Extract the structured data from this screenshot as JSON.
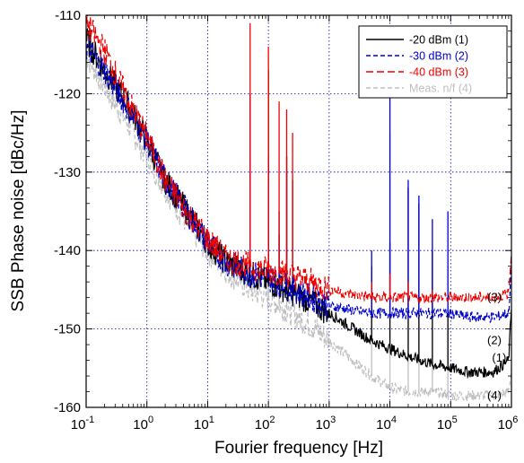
{
  "chart_data": {
    "type": "line",
    "title": "",
    "xlabel": "Fourier frequency [Hz]",
    "ylabel": "SSB Phase noise [dBc/Hz]",
    "xscale": "log",
    "xlim": [
      0.1,
      1000000
    ],
    "ylim": [
      -160,
      -110
    ],
    "x_ticks": [
      {
        "value": 0.1,
        "base": "10",
        "exp": "-1"
      },
      {
        "value": 1,
        "base": "10",
        "exp": "0"
      },
      {
        "value": 10,
        "base": "10",
        "exp": "1"
      },
      {
        "value": 100,
        "base": "10",
        "exp": "2"
      },
      {
        "value": 1000,
        "base": "10",
        "exp": "3"
      },
      {
        "value": 10000,
        "base": "10",
        "exp": "4"
      },
      {
        "value": 100000,
        "base": "10",
        "exp": "5"
      },
      {
        "value": 1000000,
        "base": "10",
        "exp": "6"
      }
    ],
    "y_ticks": [
      {
        "value": -110,
        "label": "-110"
      },
      {
        "value": -120,
        "label": "-120"
      },
      {
        "value": -130,
        "label": "-130"
      },
      {
        "value": -140,
        "label": "-140"
      },
      {
        "value": -150,
        "label": "-150"
      },
      {
        "value": -160,
        "label": "-160"
      }
    ],
    "grid": true,
    "legend_position": "top-right",
    "series": [
      {
        "name": "-20 dBm (1)",
        "color": "#000000",
        "dash": "solid",
        "points": [
          [
            0.1,
            -113
          ],
          [
            0.2,
            -117
          ],
          [
            0.5,
            -121.5
          ],
          [
            1,
            -126
          ],
          [
            2,
            -131
          ],
          [
            5,
            -135.5
          ],
          [
            10,
            -139
          ],
          [
            20,
            -141.5
          ],
          [
            50,
            -143
          ],
          [
            100,
            -144
          ],
          [
            200,
            -145
          ],
          [
            500,
            -146.5
          ],
          [
            1000,
            -148
          ],
          [
            2000,
            -149.5
          ],
          [
            5000,
            -151.5
          ],
          [
            10000,
            -152.5
          ],
          [
            20000,
            -153.5
          ],
          [
            50000,
            -154.5
          ],
          [
            100000,
            -155
          ],
          [
            200000,
            -155.5
          ],
          [
            500000,
            -155.5
          ],
          [
            900000,
            -154
          ],
          [
            1000000,
            -147
          ]
        ],
        "spurs": [
          [
            50,
            -143
          ],
          [
            100,
            -117
          ],
          [
            150,
            -138
          ],
          [
            200,
            -128
          ],
          [
            250,
            -131
          ],
          [
            5000,
            -142
          ],
          [
            10000,
            -139
          ],
          [
            20000,
            -132
          ],
          [
            30000,
            -134
          ],
          [
            50000,
            -140
          ],
          [
            90000,
            -148
          ]
        ]
      },
      {
        "name": "-30 dBm (2)",
        "color": "#0000cc",
        "dash": "dash",
        "points": [
          [
            0.1,
            -114
          ],
          [
            0.2,
            -117
          ],
          [
            0.5,
            -122
          ],
          [
            1,
            -126
          ],
          [
            2,
            -131
          ],
          [
            5,
            -135.5
          ],
          [
            10,
            -139
          ],
          [
            20,
            -141.5
          ],
          [
            50,
            -143
          ],
          [
            100,
            -143.5
          ],
          [
            200,
            -144.5
          ],
          [
            500,
            -146
          ],
          [
            1000,
            -147
          ],
          [
            2000,
            -147.5
          ],
          [
            5000,
            -148
          ],
          [
            10000,
            -148
          ],
          [
            20000,
            -148
          ],
          [
            50000,
            -148
          ],
          [
            100000,
            -148
          ],
          [
            200000,
            -148.5
          ],
          [
            500000,
            -148.5
          ],
          [
            900000,
            -148
          ],
          [
            1000000,
            -142
          ]
        ],
        "spurs": [
          [
            50,
            -120
          ],
          [
            100,
            -128
          ],
          [
            150,
            -135
          ],
          [
            200,
            -130
          ],
          [
            5000,
            -140
          ],
          [
            10000,
            -120
          ],
          [
            20000,
            -131
          ],
          [
            30000,
            -133
          ],
          [
            50000,
            -136
          ],
          [
            90000,
            -135
          ]
        ]
      },
      {
        "name": "-40 dBm (3)",
        "color": "#ee0000",
        "dash": "longdash",
        "points": [
          [
            0.1,
            -111
          ],
          [
            0.2,
            -114.5
          ],
          [
            0.5,
            -121
          ],
          [
            1,
            -125.5
          ],
          [
            2,
            -131
          ],
          [
            5,
            -135.5
          ],
          [
            10,
            -138.5
          ],
          [
            20,
            -141
          ],
          [
            50,
            -142
          ],
          [
            100,
            -142.5
          ],
          [
            200,
            -143
          ],
          [
            500,
            -144
          ],
          [
            1000,
            -145
          ],
          [
            2000,
            -145.5
          ],
          [
            5000,
            -146
          ],
          [
            10000,
            -146
          ],
          [
            20000,
            -146
          ],
          [
            50000,
            -146
          ],
          [
            100000,
            -146
          ],
          [
            200000,
            -146
          ],
          [
            500000,
            -146
          ],
          [
            900000,
            -145.5
          ],
          [
            1000000,
            -140
          ]
        ],
        "spurs": [
          [
            50,
            -111
          ],
          [
            100,
            -114
          ],
          [
            150,
            -121
          ],
          [
            200,
            -122
          ],
          [
            250,
            -125
          ],
          [
            5000,
            -144
          ],
          [
            10000,
            -143
          ],
          [
            20000,
            -144
          ],
          [
            50000,
            -145
          ]
        ]
      },
      {
        "name": "Meas. n/f (4)",
        "color": "#bfbfbf",
        "dash": "dash",
        "points": [
          [
            0.1,
            -115
          ],
          [
            0.2,
            -119
          ],
          [
            0.5,
            -124
          ],
          [
            1,
            -128
          ],
          [
            2,
            -132
          ],
          [
            5,
            -137
          ],
          [
            10,
            -140
          ],
          [
            20,
            -142.5
          ],
          [
            50,
            -145
          ],
          [
            100,
            -146
          ],
          [
            200,
            -147.5
          ],
          [
            500,
            -149.5
          ],
          [
            1000,
            -151.5
          ],
          [
            2000,
            -153.5
          ],
          [
            5000,
            -156
          ],
          [
            10000,
            -157.5
          ],
          [
            20000,
            -158
          ],
          [
            50000,
            -158
          ],
          [
            100000,
            -158.5
          ],
          [
            200000,
            -158.5
          ],
          [
            500000,
            -158.5
          ],
          [
            900000,
            -158
          ],
          [
            1000000,
            -155
          ]
        ],
        "spurs": [
          [
            50,
            -140
          ],
          [
            100,
            -137
          ],
          [
            150,
            -142
          ],
          [
            200,
            -140
          ],
          [
            5000,
            -147
          ],
          [
            10000,
            -125
          ],
          [
            20000,
            -146
          ],
          [
            30000,
            -145
          ],
          [
            50000,
            -140
          ],
          [
            90000,
            -142
          ]
        ]
      }
    ],
    "annotations": [
      {
        "text": "(3)",
        "x": 400000,
        "y": -146
      },
      {
        "text": "(2)",
        "x": 400000,
        "y": -151.5
      },
      {
        "text": "(1)",
        "x": 480000,
        "y": -153.7
      },
      {
        "text": "(4)",
        "x": 400000,
        "y": -158.5
      }
    ]
  }
}
